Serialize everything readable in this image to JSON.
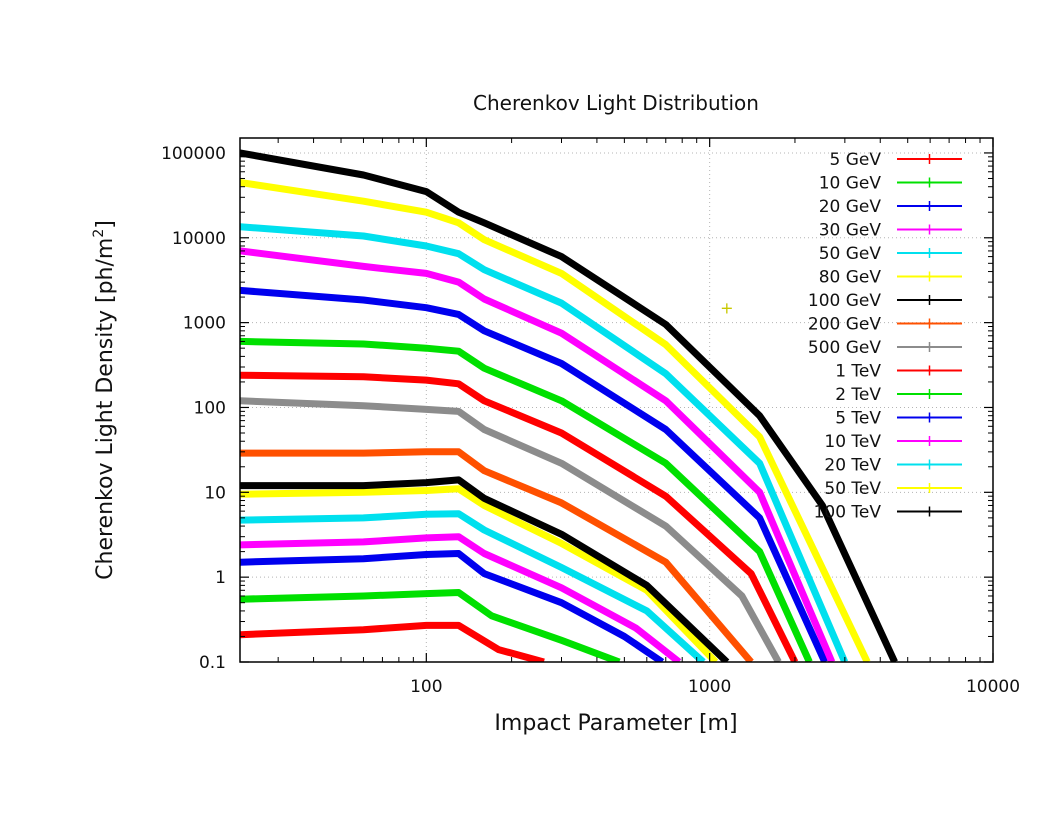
{
  "chart_data": {
    "type": "line",
    "title": "Cherenkov Light Distribution",
    "xlabel": "Impact Parameter [m]",
    "ylabel_main": "Cherenkov Light Density [ph/m",
    "ylabel_sup": "2",
    "ylabel_end": "]",
    "x_scale": "log",
    "y_scale": "log",
    "xlim": [
      22,
      10000
    ],
    "ylim": [
      0.1,
      150000
    ],
    "x_ticks": [
      {
        "value": 100,
        "label": "100"
      },
      {
        "value": 1000,
        "label": "1000"
      },
      {
        "value": 10000,
        "label": "10000"
      }
    ],
    "y_ticks": [
      {
        "value": 0.1,
        "label": "0.1"
      },
      {
        "value": 1,
        "label": "1"
      },
      {
        "value": 10,
        "label": "10"
      },
      {
        "value": 100,
        "label": "100"
      },
      {
        "value": 1000,
        "label": "1000"
      },
      {
        "value": 10000,
        "label": "10000"
      },
      {
        "value": 100000,
        "label": "100000"
      }
    ],
    "grid": true,
    "legend_position": "top-right",
    "series": [
      {
        "name": "5 GeV",
        "color": "#ff0000",
        "points": [
          [
            22,
            0.21
          ],
          [
            60,
            0.24
          ],
          [
            100,
            0.27
          ],
          [
            130,
            0.27
          ],
          [
            180,
            0.14
          ],
          [
            260,
            0.1
          ]
        ]
      },
      {
        "name": "10 GeV",
        "color": "#00e000",
        "points": [
          [
            22,
            0.55
          ],
          [
            60,
            0.6
          ],
          [
            100,
            0.64
          ],
          [
            130,
            0.66
          ],
          [
            170,
            0.35
          ],
          [
            300,
            0.18
          ],
          [
            480,
            0.1
          ]
        ]
      },
      {
        "name": "20 GeV",
        "color": "#0000ee",
        "points": [
          [
            22,
            1.5
          ],
          [
            60,
            1.65
          ],
          [
            100,
            1.85
          ],
          [
            130,
            1.9
          ],
          [
            160,
            1.1
          ],
          [
            300,
            0.5
          ],
          [
            500,
            0.2
          ],
          [
            680,
            0.1
          ]
        ]
      },
      {
        "name": "30 GeV",
        "color": "#ff00ff",
        "points": [
          [
            22,
            2.4
          ],
          [
            60,
            2.6
          ],
          [
            100,
            2.9
          ],
          [
            130,
            3.0
          ],
          [
            160,
            1.9
          ],
          [
            300,
            0.75
          ],
          [
            550,
            0.25
          ],
          [
            780,
            0.1
          ]
        ]
      },
      {
        "name": "50 GeV",
        "color": "#00e0ee",
        "points": [
          [
            22,
            4.7
          ],
          [
            60,
            5.0
          ],
          [
            100,
            5.5
          ],
          [
            130,
            5.6
          ],
          [
            160,
            3.6
          ],
          [
            300,
            1.3
          ],
          [
            600,
            0.4
          ],
          [
            950,
            0.1
          ]
        ]
      },
      {
        "name": "80 GeV",
        "color": "#ffff00",
        "points": [
          [
            22,
            9.5
          ],
          [
            60,
            10
          ],
          [
            100,
            10.5
          ],
          [
            130,
            11.0
          ],
          [
            160,
            7.0
          ],
          [
            300,
            2.5
          ],
          [
            600,
            0.7
          ],
          [
            1050,
            0.1
          ]
        ]
      },
      {
        "name": "100 GeV",
        "color": "#000000",
        "points": [
          [
            22,
            12
          ],
          [
            60,
            12
          ],
          [
            100,
            13
          ],
          [
            130,
            14
          ],
          [
            160,
            8.5
          ],
          [
            300,
            3.2
          ],
          [
            600,
            0.8
          ],
          [
            1150,
            0.1
          ]
        ]
      },
      {
        "name": "200 GeV",
        "color": "#ff5000",
        "points": [
          [
            22,
            29
          ],
          [
            60,
            29
          ],
          [
            100,
            30
          ],
          [
            130,
            30
          ],
          [
            160,
            18
          ],
          [
            300,
            7.5
          ],
          [
            700,
            1.5
          ],
          [
            1400,
            0.1
          ]
        ]
      },
      {
        "name": "500 GeV",
        "color": "#8c8c8c",
        "points": [
          [
            22,
            120
          ],
          [
            60,
            105
          ],
          [
            100,
            95
          ],
          [
            130,
            90
          ],
          [
            160,
            55
          ],
          [
            300,
            22
          ],
          [
            700,
            4
          ],
          [
            1300,
            0.6
          ],
          [
            1750,
            0.1
          ]
        ]
      },
      {
        "name": "1 TeV",
        "color": "#ff0000",
        "points": [
          [
            22,
            240
          ],
          [
            60,
            230
          ],
          [
            100,
            210
          ],
          [
            130,
            190
          ],
          [
            160,
            120
          ],
          [
            300,
            50
          ],
          [
            700,
            9
          ],
          [
            1400,
            1.1
          ],
          [
            2000,
            0.1
          ]
        ]
      },
      {
        "name": "2 TeV",
        "color": "#00e000",
        "points": [
          [
            22,
            600
          ],
          [
            60,
            560
          ],
          [
            100,
            500
          ],
          [
            130,
            460
          ],
          [
            160,
            290
          ],
          [
            300,
            120
          ],
          [
            700,
            22
          ],
          [
            1500,
            2
          ],
          [
            2250,
            0.1
          ]
        ]
      },
      {
        "name": "5 TeV",
        "color": "#0000ee",
        "points": [
          [
            22,
            2400
          ],
          [
            60,
            1850
          ],
          [
            100,
            1500
          ],
          [
            130,
            1250
          ],
          [
            160,
            800
          ],
          [
            300,
            330
          ],
          [
            700,
            55
          ],
          [
            1500,
            5
          ],
          [
            2550,
            0.1
          ]
        ]
      },
      {
        "name": "10 TeV",
        "color": "#ff00ff",
        "points": [
          [
            22,
            7000
          ],
          [
            60,
            4600
          ],
          [
            100,
            3800
          ],
          [
            130,
            3000
          ],
          [
            160,
            1900
          ],
          [
            300,
            750
          ],
          [
            700,
            120
          ],
          [
            1500,
            10
          ],
          [
            2700,
            0.1
          ]
        ]
      },
      {
        "name": "20 TeV",
        "color": "#00e0ee",
        "points": [
          [
            22,
            13500
          ],
          [
            60,
            10500
          ],
          [
            100,
            8000
          ],
          [
            130,
            6500
          ],
          [
            160,
            4200
          ],
          [
            300,
            1700
          ],
          [
            700,
            250
          ],
          [
            1500,
            22
          ],
          [
            3000,
            0.1
          ]
        ]
      },
      {
        "name": "50 TeV",
        "color": "#ffff00",
        "points": [
          [
            22,
            45000
          ],
          [
            60,
            27000
          ],
          [
            100,
            20000
          ],
          [
            130,
            15000
          ],
          [
            160,
            9500
          ],
          [
            300,
            3800
          ],
          [
            700,
            550
          ],
          [
            1500,
            45
          ],
          [
            3600,
            0.1
          ]
        ]
      },
      {
        "name": "100 TeV",
        "color": "#000000",
        "points": [
          [
            22,
            100000
          ],
          [
            60,
            55000
          ],
          [
            100,
            35000
          ],
          [
            130,
            20000
          ],
          [
            160,
            15000
          ],
          [
            300,
            6000
          ],
          [
            700,
            950
          ],
          [
            1500,
            80
          ],
          [
            2500,
            7
          ],
          [
            4500,
            0.1
          ]
        ]
      }
    ],
    "annotation": {
      "text": "+",
      "x": 1150,
      "y": 1500,
      "color": "#c8c800"
    }
  }
}
